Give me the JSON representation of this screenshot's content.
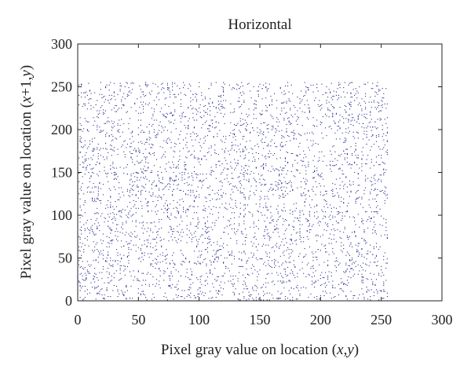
{
  "chart_data": {
    "type": "scatter",
    "title": "Horizontal",
    "xlabel": {
      "prefix": "Pixel gray value on location (",
      "var1": "x",
      "sep": ",",
      "var2": "y",
      "suffix": ")"
    },
    "ylabel": {
      "prefix": "Pixel gray value on location (",
      "var1": "x",
      "sep": "+1,",
      "var2": "y",
      "suffix": ")"
    },
    "xlim": [
      0,
      300
    ],
    "ylim": [
      0,
      300
    ],
    "xticks": [
      0,
      50,
      100,
      150,
      200,
      250,
      300
    ],
    "yticks": [
      0,
      50,
      100,
      150,
      200,
      250,
      300
    ],
    "grid": false,
    "point_color": "#2b2b8c",
    "points": {
      "description": "Pixel pairs uniformly filling the range 0–255 on both axes",
      "x_range": [
        0,
        255
      ],
      "y_range": [
        0,
        255
      ],
      "count": 4200
    }
  }
}
